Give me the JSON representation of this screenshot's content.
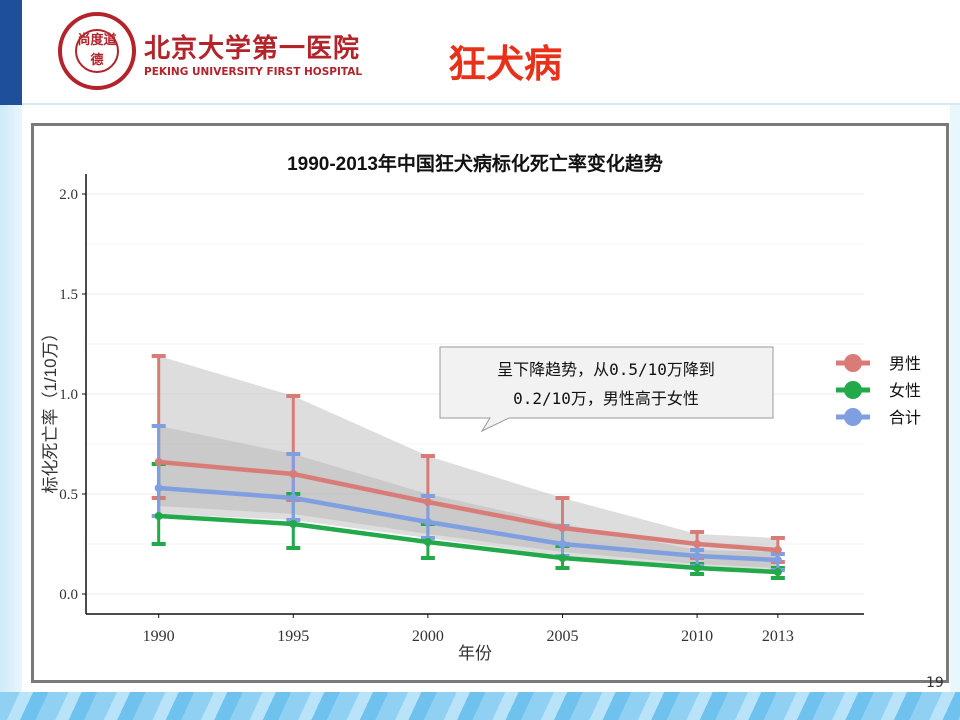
{
  "header": {
    "logo_cn": "北京大学第一医院",
    "logo_en": "PEKING UNIVERSITY FIRST HOSPITAL",
    "logo_seal_text": "尚度道德",
    "slide_title": "狂犬病"
  },
  "page_number": "19",
  "colors": {
    "title": "#e8311a",
    "brand": "#b3232a",
    "male": "#d97c78",
    "female": "#22a94a",
    "total": "#7f9fe0",
    "ribbon": "#b4b4b4"
  },
  "chart_data": {
    "type": "line",
    "title": "1990-2013年中国狂犬病标化死亡率变化趋势",
    "xlabel": "年份",
    "ylabel": "标化死亡率（1/10万）",
    "x": [
      1990,
      1995,
      2000,
      2005,
      2010,
      2013
    ],
    "x_ticks": [
      "1990",
      "1995",
      "2000",
      "2005",
      "2010",
      "2013"
    ],
    "ylim": [
      0,
      2.0
    ],
    "y_ticks": [
      "0.0",
      "0.5",
      "1.0",
      "1.5",
      "2.0"
    ],
    "grid": true,
    "legend_position": "right",
    "series": [
      {
        "name": "男性",
        "color": "#d97c78",
        "values": [
          0.66,
          0.6,
          0.46,
          0.33,
          0.25,
          0.22
        ],
        "lower": [
          0.48,
          0.47,
          0.35,
          0.25,
          0.18,
          0.16
        ],
        "upper": [
          1.19,
          0.99,
          0.69,
          0.48,
          0.31,
          0.28
        ]
      },
      {
        "name": "女性",
        "color": "#22a94a",
        "values": [
          0.39,
          0.35,
          0.26,
          0.18,
          0.13,
          0.11
        ],
        "lower": [
          0.25,
          0.23,
          0.18,
          0.13,
          0.1,
          0.08
        ],
        "upper": [
          0.65,
          0.5,
          0.35,
          0.24,
          0.15,
          0.13
        ]
      },
      {
        "name": "合计",
        "color": "#7f9fe0",
        "values": [
          0.53,
          0.48,
          0.36,
          0.25,
          0.19,
          0.17
        ],
        "lower": [
          0.39,
          0.37,
          0.28,
          0.19,
          0.14,
          0.12
        ],
        "upper": [
          0.84,
          0.7,
          0.49,
          0.34,
          0.22,
          0.2
        ]
      }
    ],
    "ribbons": [
      {
        "lower": [
          0.4,
          0.37,
          0.28,
          0.19,
          0.14,
          0.12
        ],
        "upper": [
          1.19,
          0.99,
          0.69,
          0.48,
          0.3,
          0.28
        ]
      },
      {
        "lower": [
          0.44,
          0.4,
          0.3,
          0.21,
          0.15,
          0.13
        ],
        "upper": [
          0.84,
          0.7,
          0.5,
          0.35,
          0.22,
          0.21
        ]
      }
    ],
    "annotation": {
      "line1": "呈下降趋势，从0.5/10万降到",
      "line2": "0.2/10万，男性高于女性"
    }
  }
}
